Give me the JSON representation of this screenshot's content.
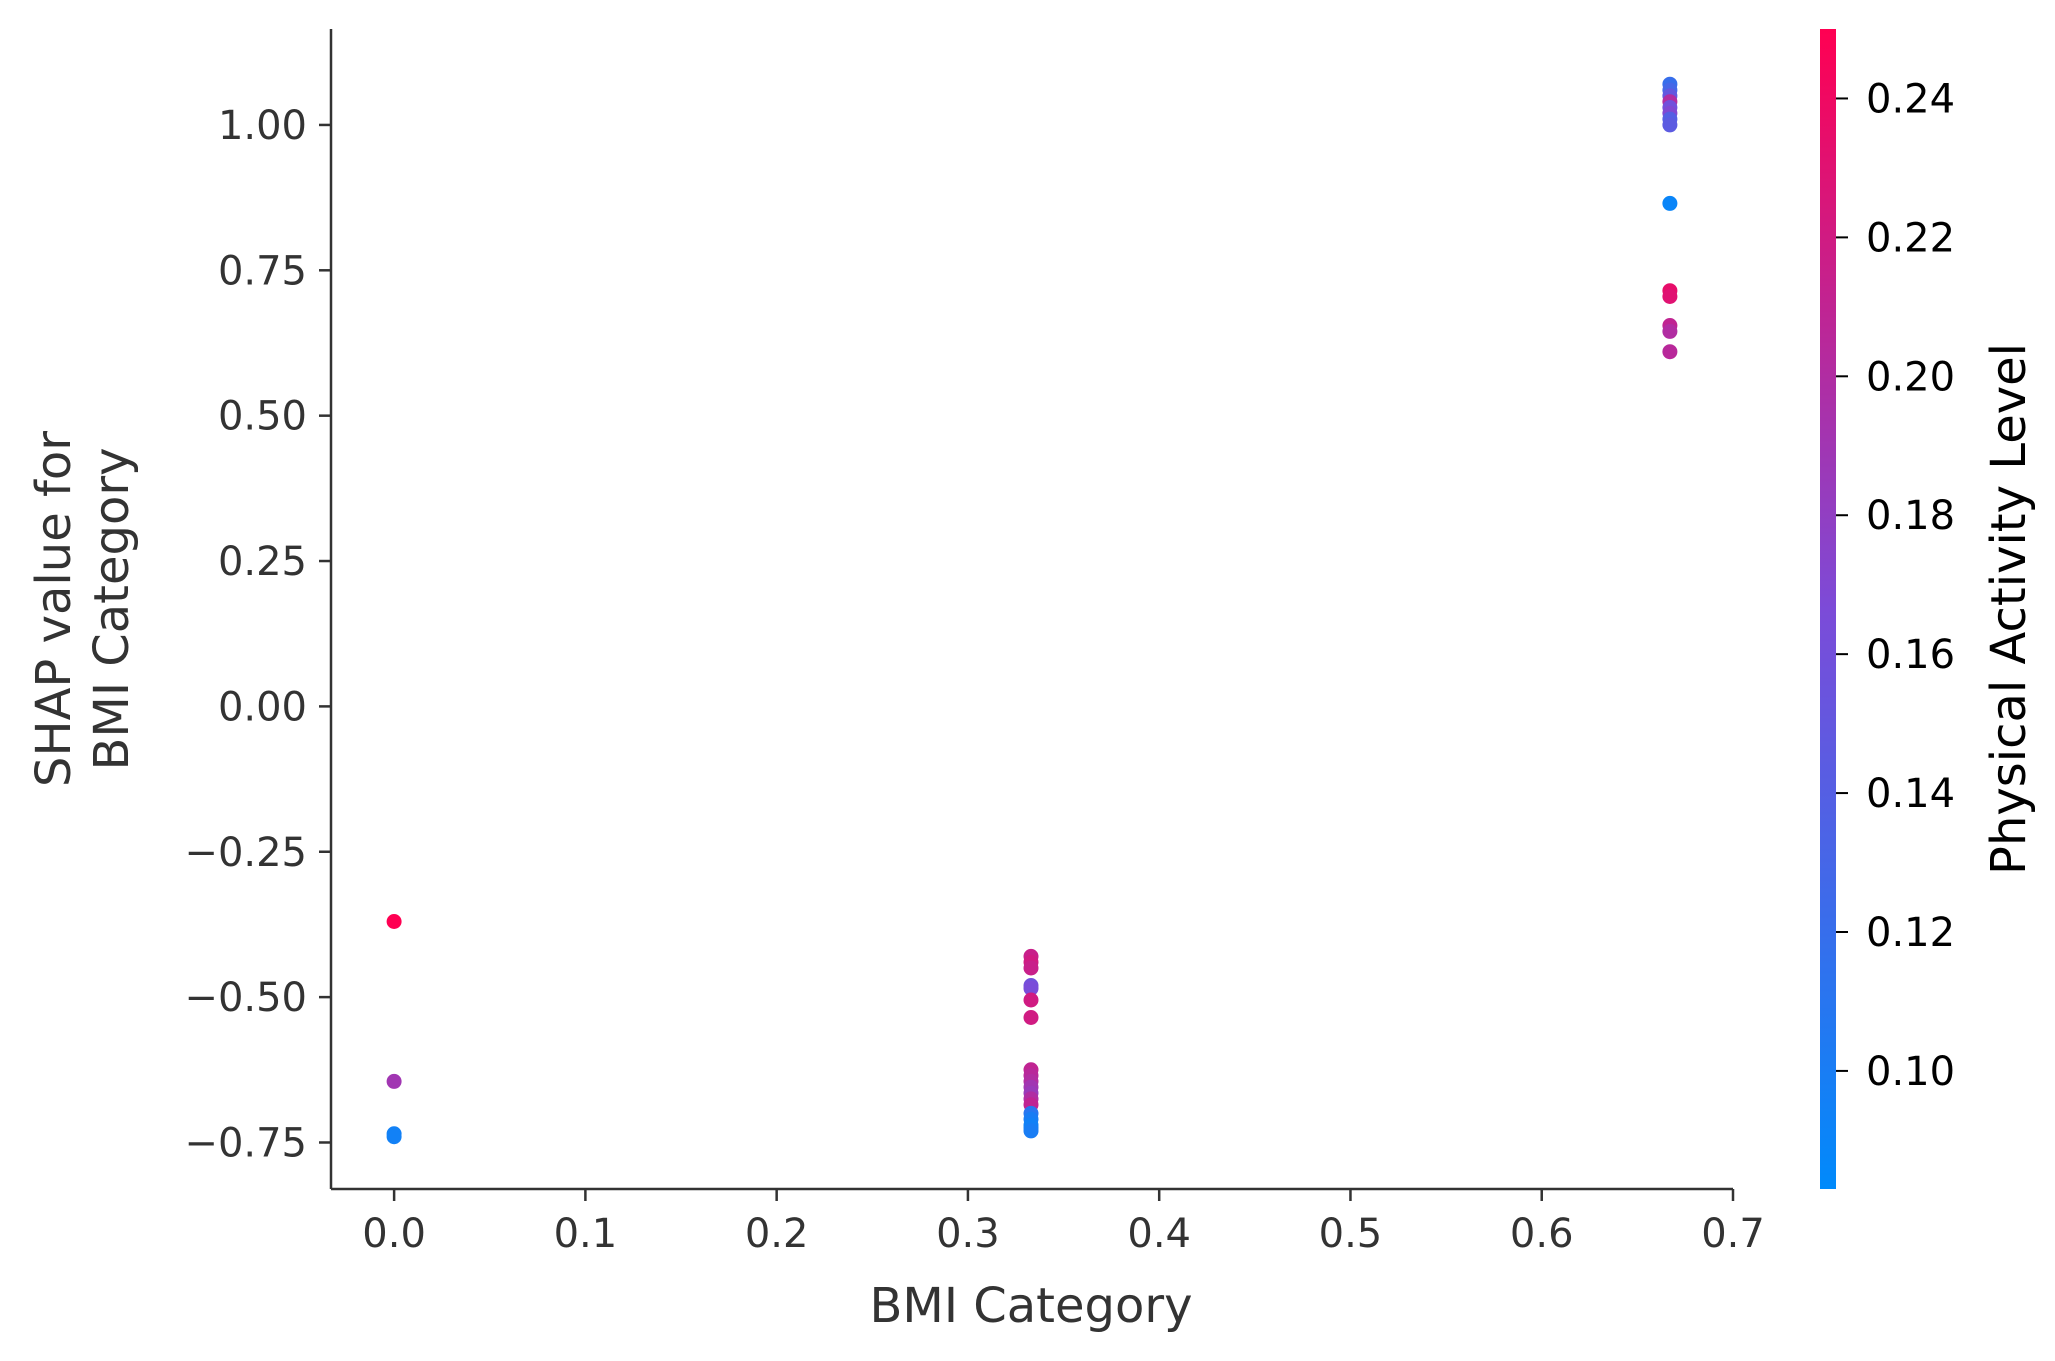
{
  "chart_data": {
    "type": "scatter",
    "title": "",
    "xlabel": "BMI Category",
    "ylabel_lines": [
      "SHAP value for",
      "BMI Category"
    ],
    "xlim": [
      -0.033,
      0.7
    ],
    "ylim": [
      -0.83,
      1.165
    ],
    "xticks": [
      0.0,
      0.1,
      0.2,
      0.3,
      0.4,
      0.5,
      0.6,
      0.7
    ],
    "xtick_labels": [
      "0.0",
      "0.1",
      "0.2",
      "0.3",
      "0.4",
      "0.5",
      "0.6",
      "0.7"
    ],
    "yticks": [
      1.0,
      0.75,
      0.5,
      0.25,
      0.0,
      -0.25,
      -0.5,
      -0.75
    ],
    "ytick_labels": [
      "1.00",
      "0.75",
      "0.50",
      "0.25",
      "0.00",
      "−0.25",
      "−0.50",
      "−0.75"
    ],
    "grid": false,
    "colorbar": {
      "label": "Physical Activity Level",
      "range": [
        0.083,
        0.25
      ],
      "ticks": [
        0.1,
        0.12,
        0.14,
        0.16,
        0.18,
        0.2,
        0.22,
        0.24
      ],
      "tick_labels": [
        "0.10",
        "0.12",
        "0.14",
        "0.16",
        "0.18",
        "0.20",
        "0.22",
        "0.24"
      ],
      "color_low": "#008afb",
      "color_high": "#ff0052"
    },
    "points": [
      {
        "x": 0.0,
        "y": -0.37,
        "c": 0.25
      },
      {
        "x": 0.0,
        "y": -0.645,
        "c": 0.19
      },
      {
        "x": 0.0,
        "y": -0.735,
        "c": 0.095
      },
      {
        "x": 0.0,
        "y": -0.74,
        "c": 0.095
      },
      {
        "x": 0.333,
        "y": -0.43,
        "c": 0.215
      },
      {
        "x": 0.333,
        "y": -0.44,
        "c": 0.22
      },
      {
        "x": 0.333,
        "y": -0.45,
        "c": 0.215
      },
      {
        "x": 0.333,
        "y": -0.48,
        "c": 0.16
      },
      {
        "x": 0.333,
        "y": -0.485,
        "c": 0.165
      },
      {
        "x": 0.333,
        "y": -0.505,
        "c": 0.22
      },
      {
        "x": 0.333,
        "y": -0.535,
        "c": 0.22
      },
      {
        "x": 0.333,
        "y": -0.625,
        "c": 0.21
      },
      {
        "x": 0.333,
        "y": -0.635,
        "c": 0.205
      },
      {
        "x": 0.333,
        "y": -0.645,
        "c": 0.2
      },
      {
        "x": 0.333,
        "y": -0.655,
        "c": 0.19
      },
      {
        "x": 0.333,
        "y": -0.665,
        "c": 0.185
      },
      {
        "x": 0.333,
        "y": -0.675,
        "c": 0.2
      },
      {
        "x": 0.333,
        "y": -0.685,
        "c": 0.21
      },
      {
        "x": 0.333,
        "y": -0.7,
        "c": 0.11
      },
      {
        "x": 0.333,
        "y": -0.71,
        "c": 0.1
      },
      {
        "x": 0.333,
        "y": -0.72,
        "c": 0.095
      },
      {
        "x": 0.333,
        "y": -0.725,
        "c": 0.095
      },
      {
        "x": 0.333,
        "y": -0.73,
        "c": 0.1
      },
      {
        "x": 0.667,
        "y": 1.07,
        "c": 0.12
      },
      {
        "x": 0.667,
        "y": 1.06,
        "c": 0.13
      },
      {
        "x": 0.667,
        "y": 1.05,
        "c": 0.15
      },
      {
        "x": 0.667,
        "y": 1.04,
        "c": 0.2
      },
      {
        "x": 0.667,
        "y": 1.03,
        "c": 0.16
      },
      {
        "x": 0.667,
        "y": 1.02,
        "c": 0.17
      },
      {
        "x": 0.667,
        "y": 1.01,
        "c": 0.14
      },
      {
        "x": 0.667,
        "y": 1.0,
        "c": 0.145
      },
      {
        "x": 0.667,
        "y": 0.865,
        "c": 0.09
      },
      {
        "x": 0.667,
        "y": 0.715,
        "c": 0.235
      },
      {
        "x": 0.667,
        "y": 0.705,
        "c": 0.23
      },
      {
        "x": 0.667,
        "y": 0.655,
        "c": 0.21
      },
      {
        "x": 0.667,
        "y": 0.645,
        "c": 0.2
      },
      {
        "x": 0.667,
        "y": 0.61,
        "c": 0.205
      }
    ]
  }
}
